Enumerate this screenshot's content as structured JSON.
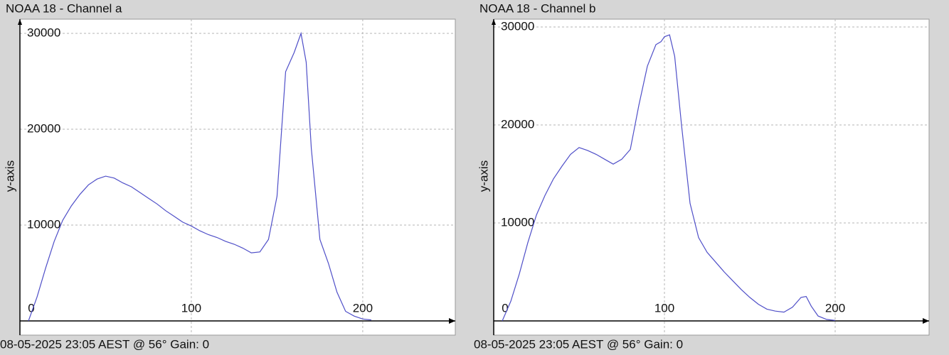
{
  "chart_data": [
    {
      "type": "line",
      "title": "NOAA 18 - Channel a",
      "y_label": "y-axis",
      "footer": "08-05-2025 23:05 AEST @ 56° Gain: 0",
      "x": [
        5,
        10,
        15,
        20,
        25,
        30,
        35,
        40,
        45,
        50,
        55,
        60,
        65,
        70,
        75,
        80,
        85,
        90,
        95,
        100,
        105,
        110,
        115,
        120,
        125,
        130,
        135,
        140,
        145,
        150,
        155,
        160,
        164,
        167,
        170,
        175,
        180,
        185,
        190,
        195,
        200,
        205
      ],
      "values": [
        0,
        2500,
        5500,
        8300,
        10500,
        12000,
        13200,
        14200,
        14800,
        15100,
        14900,
        14400,
        14000,
        13400,
        12800,
        12200,
        11500,
        10900,
        10300,
        9900,
        9400,
        9000,
        8700,
        8300,
        8000,
        7600,
        7100,
        7200,
        8500,
        13000,
        26000,
        28000,
        30000,
        27000,
        18000,
        8500,
        6000,
        3000,
        1000,
        500,
        200,
        100
      ],
      "color": "#4f4fc8",
      "xlim": [
        0,
        254
      ],
      "ylim": [
        0,
        31480
      ],
      "xticks": [
        0,
        100,
        200
      ],
      "yticks": [
        10000,
        20000,
        30000
      ],
      "grid": true
    },
    {
      "type": "line",
      "title": "NOAA 18 - Channel b",
      "y_label": "y-axis",
      "footer": "08-05-2025 23:05 AEST @ 56° Gain: 0",
      "x": [
        5,
        10,
        15,
        20,
        25,
        30,
        35,
        40,
        45,
        50,
        55,
        60,
        65,
        70,
        75,
        80,
        85,
        90,
        95,
        98,
        100,
        103,
        106,
        110,
        115,
        120,
        125,
        130,
        135,
        140,
        145,
        150,
        155,
        160,
        165,
        170,
        175,
        180,
        183,
        186,
        190,
        195,
        200
      ],
      "values": [
        0,
        2000,
        4800,
        8000,
        10800,
        12800,
        14500,
        15800,
        17000,
        17700,
        17400,
        17000,
        16500,
        16000,
        16500,
        17500,
        22000,
        26000,
        28200,
        28500,
        29000,
        29200,
        27000,
        20000,
        12000,
        8500,
        7000,
        6000,
        5000,
        4100,
        3200,
        2400,
        1700,
        1200,
        1000,
        900,
        1400,
        2400,
        2500,
        1500,
        500,
        150,
        50
      ],
      "color": "#4f4fc8",
      "xlim": [
        0,
        255
      ],
      "ylim": [
        0,
        30800
      ],
      "xticks": [
        0,
        100,
        200
      ],
      "yticks": [
        10000,
        20000,
        30000
      ],
      "grid": true
    }
  ]
}
